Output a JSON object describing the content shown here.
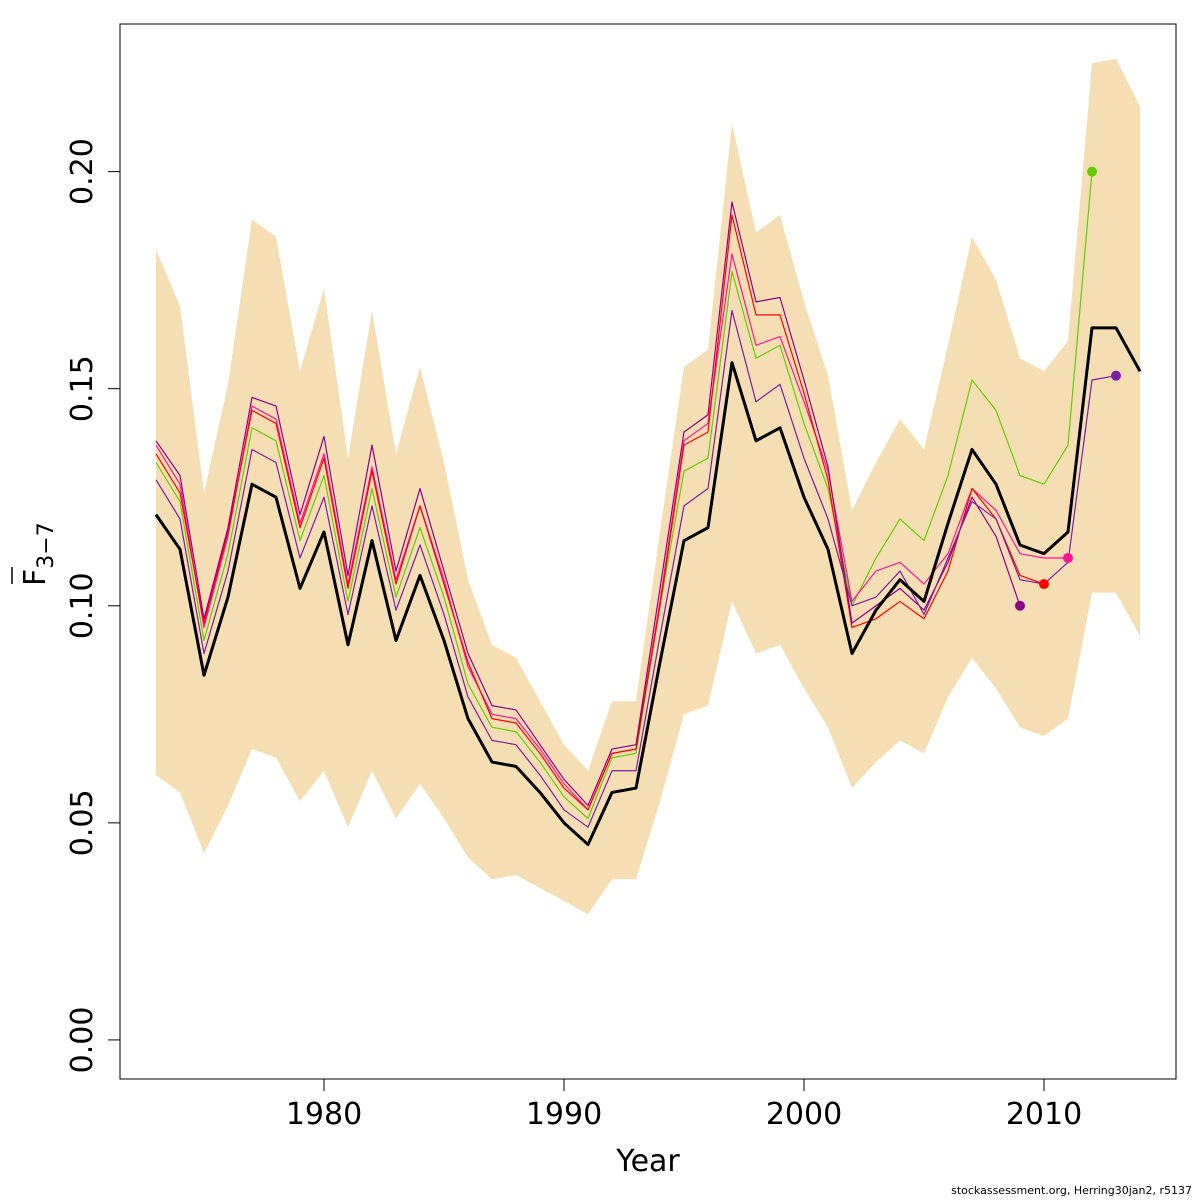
{
  "chart_data": {
    "type": "line",
    "xlabel": "Year",
    "ylabel": {
      "main": "F",
      "subscript": "3−7"
    },
    "xlim": [
      1971.5,
      2015.5
    ],
    "ylim": [
      -0.009,
      0.234
    ],
    "x_ticks": [
      1980,
      1990,
      2000,
      2010
    ],
    "x_tick_labels": [
      "1980",
      "1990",
      "2000",
      "2010"
    ],
    "y_ticks": [
      0.0,
      0.05,
      0.1,
      0.15,
      0.2
    ],
    "y_tick_labels": [
      "0.00",
      "0.05",
      "0.10",
      "0.15",
      "0.20"
    ],
    "band": {
      "color": "#f5deb3",
      "x": [
        1973,
        1974,
        1975,
        1976,
        1977,
        1978,
        1979,
        1980,
        1981,
        1982,
        1983,
        1984,
        1985,
        1986,
        1987,
        1988,
        1989,
        1990,
        1991,
        1992,
        1993,
        1994,
        1995,
        1996,
        1997,
        1998,
        1999,
        2000,
        2001,
        2002,
        2003,
        2004,
        2005,
        2006,
        2007,
        2008,
        2009,
        2010,
        2011,
        2012,
        2013,
        2014
      ],
      "upper": [
        0.182,
        0.169,
        0.126,
        0.151,
        0.189,
        0.185,
        0.154,
        0.173,
        0.134,
        0.168,
        0.135,
        0.155,
        0.133,
        0.106,
        0.091,
        0.088,
        0.078,
        0.068,
        0.062,
        0.078,
        0.078,
        0.117,
        0.155,
        0.159,
        0.211,
        0.186,
        0.19,
        0.17,
        0.153,
        0.122,
        0.133,
        0.143,
        0.136,
        0.16,
        0.185,
        0.175,
        0.157,
        0.154,
        0.161,
        0.225,
        0.226,
        0.215
      ],
      "lower": [
        0.061,
        0.057,
        0.043,
        0.054,
        0.067,
        0.065,
        0.055,
        0.062,
        0.049,
        0.062,
        0.051,
        0.059,
        0.051,
        0.042,
        0.037,
        0.038,
        0.035,
        0.032,
        0.029,
        0.037,
        0.037,
        0.055,
        0.075,
        0.077,
        0.101,
        0.089,
        0.091,
        0.081,
        0.072,
        0.058,
        0.064,
        0.069,
        0.066,
        0.079,
        0.088,
        0.081,
        0.072,
        0.07,
        0.074,
        0.103,
        0.103,
        0.093
      ]
    },
    "series": [
      {
        "color": "#000000",
        "width": 3,
        "x": [
          1973,
          1974,
          1975,
          1976,
          1977,
          1978,
          1979,
          1980,
          1981,
          1982,
          1983,
          1984,
          1985,
          1986,
          1987,
          1988,
          1989,
          1990,
          1991,
          1992,
          1993,
          1994,
          1995,
          1996,
          1997,
          1998,
          1999,
          2000,
          2001,
          2002,
          2003,
          2004,
          2005,
          2006,
          2007,
          2008,
          2009,
          2010,
          2011,
          2012,
          2013,
          2014
        ],
        "values": [
          0.121,
          0.113,
          0.084,
          0.102,
          0.128,
          0.125,
          0.104,
          0.117,
          0.091,
          0.115,
          0.092,
          0.107,
          0.092,
          0.074,
          0.064,
          0.063,
          0.057,
          0.05,
          0.045,
          0.057,
          0.058,
          0.087,
          0.115,
          0.118,
          0.156,
          0.138,
          0.141,
          0.125,
          0.113,
          0.089,
          0.099,
          0.106,
          0.101,
          0.119,
          0.136,
          0.128,
          0.114,
          0.112,
          0.117,
          0.164,
          0.164,
          0.154
        ]
      },
      {
        "color": "#66cc00",
        "width": 1.2,
        "x": [
          1973,
          1974,
          1975,
          1976,
          1977,
          1978,
          1979,
          1980,
          1981,
          1982,
          1983,
          1984,
          1985,
          1986,
          1987,
          1988,
          1989,
          1990,
          1991,
          1992,
          1993,
          1994,
          1995,
          1996,
          1997,
          1998,
          1999,
          2000,
          2001,
          2002,
          2003,
          2004,
          2005,
          2006,
          2007,
          2008,
          2009,
          2010,
          2011,
          2012
        ],
        "values": [
          0.133,
          0.124,
          0.092,
          0.112,
          0.141,
          0.138,
          0.115,
          0.13,
          0.101,
          0.127,
          0.102,
          0.118,
          0.102,
          0.082,
          0.072,
          0.071,
          0.064,
          0.056,
          0.051,
          0.065,
          0.066,
          0.1,
          0.131,
          0.134,
          0.177,
          0.157,
          0.16,
          0.142,
          0.127,
          0.1,
          0.111,
          0.12,
          0.115,
          0.13,
          0.152,
          0.145,
          0.13,
          0.128,
          0.137,
          0.2
        ],
        "end_marker": true
      },
      {
        "color": "#ff1493",
        "width": 1.2,
        "x": [
          1973,
          1974,
          1975,
          1976,
          1977,
          1978,
          1979,
          1980,
          1981,
          1982,
          1983,
          1984,
          1985,
          1986,
          1987,
          1988,
          1989,
          1990,
          1991,
          1992,
          1993,
          1994,
          1995,
          1996,
          1997,
          1998,
          1999,
          2000,
          2001,
          2002,
          2003,
          2004,
          2005,
          2006,
          2007,
          2008,
          2009,
          2010,
          2011
        ],
        "values": [
          0.137,
          0.128,
          0.095,
          0.116,
          0.146,
          0.143,
          0.119,
          0.135,
          0.105,
          0.132,
          0.106,
          0.123,
          0.106,
          0.086,
          0.075,
          0.074,
          0.067,
          0.059,
          0.053,
          0.066,
          0.067,
          0.101,
          0.138,
          0.142,
          0.181,
          0.16,
          0.162,
          0.147,
          0.131,
          0.101,
          0.108,
          0.11,
          0.105,
          0.112,
          0.127,
          0.122,
          0.112,
          0.111,
          0.111
        ],
        "end_marker": true
      },
      {
        "color": "#ff0000",
        "width": 1.2,
        "x": [
          1973,
          1974,
          1975,
          1976,
          1977,
          1978,
          1979,
          1980,
          1981,
          1982,
          1983,
          1984,
          1985,
          1986,
          1987,
          1988,
          1989,
          1990,
          1991,
          1992,
          1993,
          1994,
          1995,
          1996,
          1997,
          1998,
          1999,
          2000,
          2001,
          2002,
          2003,
          2004,
          2005,
          2006,
          2007,
          2008,
          2009,
          2010
        ],
        "values": [
          0.135,
          0.126,
          0.096,
          0.117,
          0.145,
          0.142,
          0.118,
          0.134,
          0.104,
          0.131,
          0.105,
          0.123,
          0.105,
          0.087,
          0.074,
          0.073,
          0.066,
          0.058,
          0.053,
          0.066,
          0.067,
          0.1,
          0.137,
          0.14,
          0.19,
          0.167,
          0.167,
          0.149,
          0.129,
          0.095,
          0.097,
          0.101,
          0.097,
          0.108,
          0.127,
          0.12,
          0.107,
          0.105
        ],
        "end_marker": true
      },
      {
        "color": "#8b008b",
        "width": 1.2,
        "x": [
          1973,
          1974,
          1975,
          1976,
          1977,
          1978,
          1979,
          1980,
          1981,
          1982,
          1983,
          1984,
          1985,
          1986,
          1987,
          1988,
          1989,
          1990,
          1991,
          1992,
          1993,
          1994,
          1995,
          1996,
          1997,
          1998,
          1999,
          2000,
          2001,
          2002,
          2003,
          2004,
          2005,
          2006,
          2007,
          2008,
          2009
        ],
        "values": [
          0.138,
          0.13,
          0.097,
          0.118,
          0.148,
          0.146,
          0.121,
          0.139,
          0.107,
          0.137,
          0.108,
          0.127,
          0.108,
          0.089,
          0.077,
          0.076,
          0.068,
          0.06,
          0.054,
          0.067,
          0.068,
          0.104,
          0.14,
          0.144,
          0.193,
          0.17,
          0.171,
          0.152,
          0.132,
          0.096,
          0.1,
          0.104,
          0.099,
          0.11,
          0.125,
          0.116,
          0.1
        ],
        "end_marker": true
      },
      {
        "color": "#7b1fa2",
        "width": 1.2,
        "x": [
          1973,
          1974,
          1975,
          1976,
          1977,
          1978,
          1979,
          1980,
          1981,
          1982,
          1983,
          1984,
          1985,
          1986,
          1987,
          1988,
          1989,
          1990,
          1991,
          1992,
          1993,
          1994,
          1995,
          1996,
          1997,
          1998,
          1999,
          2000,
          2001,
          2002,
          2003,
          2004,
          2005,
          2006,
          2007,
          2008,
          2009,
          2010,
          2011,
          2012,
          2013
        ],
        "values": [
          0.129,
          0.12,
          0.089,
          0.108,
          0.136,
          0.133,
          0.111,
          0.125,
          0.098,
          0.123,
          0.099,
          0.114,
          0.098,
          0.079,
          0.069,
          0.068,
          0.061,
          0.053,
          0.049,
          0.062,
          0.062,
          0.093,
          0.123,
          0.127,
          0.168,
          0.147,
          0.151,
          0.134,
          0.12,
          0.1,
          0.102,
          0.108,
          0.098,
          0.111,
          0.124,
          0.12,
          0.106,
          0.105,
          0.11,
          0.152,
          0.153
        ],
        "end_marker": true
      }
    ]
  },
  "footer": "stockassessment.org, Herring30jan2, r5137"
}
